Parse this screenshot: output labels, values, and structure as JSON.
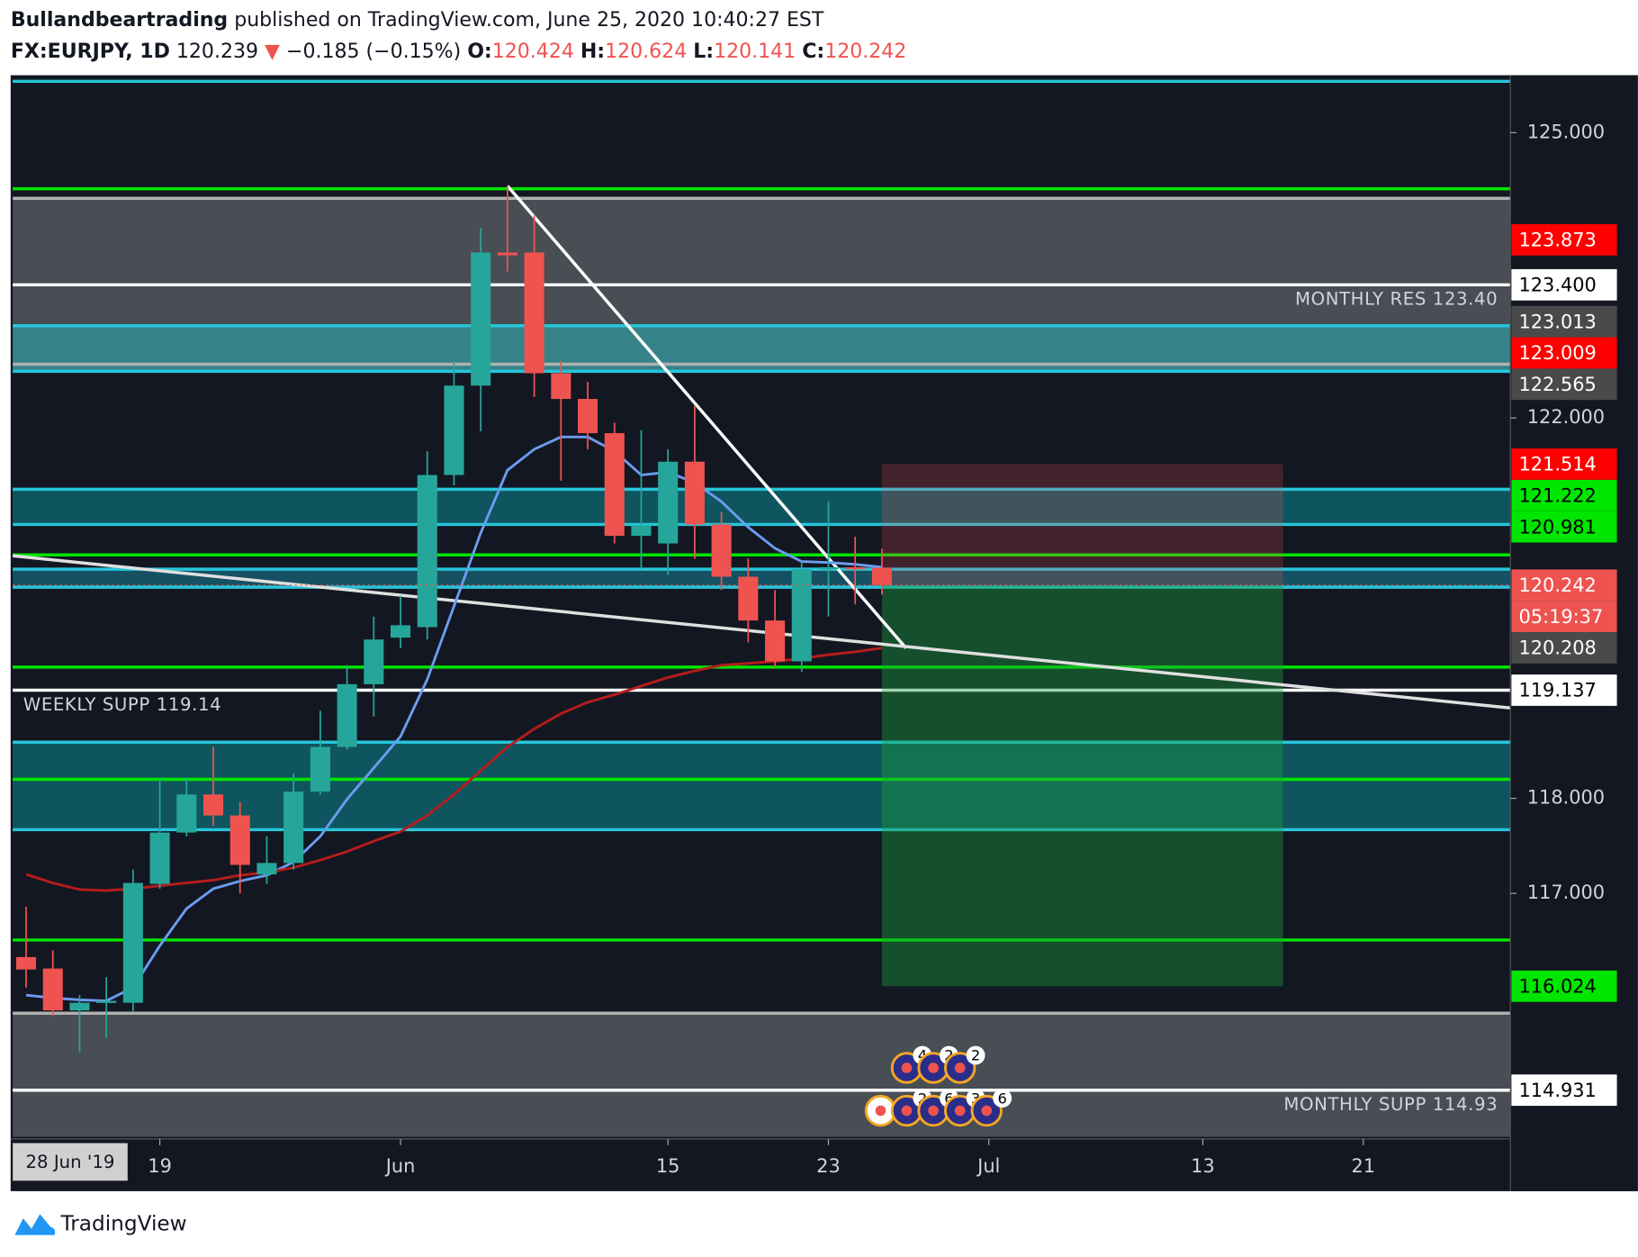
{
  "header": {
    "author": "Bullandbeartrading",
    "published": " published on TradingView.com, June 25, 2020 10:40:27 EST",
    "symbol": "FX:EURJPY, 1D",
    "last": 120.239,
    "arrow": "▼",
    "change": "−0.185 (−0.15%)",
    "o_label": "O:",
    "open": 120.424,
    "h_label": "H:",
    "high": 120.624,
    "l_label": "L:",
    "low": 120.141,
    "c_label": "C:",
    "close": 120.242
  },
  "chart_data": {
    "type": "candlestick",
    "up_color": "#26a69a",
    "down_color": "#ef5350",
    "xlim": [
      -0.5,
      55.5
    ],
    "ylim": [
      114.44,
      125.571
    ],
    "xticks": [
      {
        "value": 5,
        "label": "19"
      },
      {
        "value": 14,
        "label": "Jun"
      },
      {
        "value": 24,
        "label": "15"
      },
      {
        "value": 30,
        "label": "23"
      },
      {
        "value": 36,
        "label": "Jul"
      },
      {
        "value": 44,
        "label": "13"
      },
      {
        "value": 50,
        "label": "21"
      }
    ],
    "date_marker": "28 Jun '19",
    "yticks": [
      {
        "value": 125,
        "label": "125.000"
      },
      {
        "value": 122,
        "label": "122.000"
      },
      {
        "value": 118,
        "label": "118.000"
      },
      {
        "value": 117,
        "label": "117.000"
      }
    ],
    "candles": [
      {
        "open": 116.33,
        "high": 116.86,
        "low": 116.01,
        "close": 116.2
      },
      {
        "open": 116.21,
        "high": 116.4,
        "low": 115.71,
        "close": 115.77
      },
      {
        "open": 115.77,
        "high": 115.93,
        "low": 115.33,
        "close": 115.85
      },
      {
        "open": 115.85,
        "high": 116.12,
        "low": 115.48,
        "close": 115.87
      },
      {
        "open": 115.85,
        "high": 117.25,
        "low": 115.76,
        "close": 117.11
      },
      {
        "open": 117.1,
        "high": 118.21,
        "low": 117.05,
        "close": 117.64
      },
      {
        "open": 117.64,
        "high": 118.21,
        "low": 117.6,
        "close": 118.04
      },
      {
        "open": 118.04,
        "high": 118.54,
        "low": 117.71,
        "close": 117.82
      },
      {
        "open": 117.82,
        "high": 117.96,
        "low": 117.0,
        "close": 117.3
      },
      {
        "open": 117.2,
        "high": 117.6,
        "low": 117.1,
        "close": 117.32
      },
      {
        "open": 117.32,
        "high": 118.26,
        "low": 117.25,
        "close": 118.07
      },
      {
        "open": 118.07,
        "high": 118.92,
        "low": 118.04,
        "close": 118.54
      },
      {
        "open": 118.54,
        "high": 119.4,
        "low": 118.51,
        "close": 119.2
      },
      {
        "open": 119.2,
        "high": 119.91,
        "low": 118.86,
        "close": 119.67
      },
      {
        "open": 119.69,
        "high": 120.13,
        "low": 119.58,
        "close": 119.82
      },
      {
        "open": 119.8,
        "high": 121.65,
        "low": 119.67,
        "close": 121.4
      },
      {
        "open": 121.4,
        "high": 122.6,
        "low": 121.29,
        "close": 122.34
      },
      {
        "open": 122.34,
        "high": 124.0,
        "low": 121.86,
        "close": 123.74
      },
      {
        "open": 123.74,
        "high": 124.44,
        "low": 123.54,
        "close": 123.71
      },
      {
        "open": 123.74,
        "high": 124.13,
        "low": 122.22,
        "close": 122.47
      },
      {
        "open": 122.47,
        "high": 122.6,
        "low": 121.34,
        "close": 122.2
      },
      {
        "open": 122.2,
        "high": 122.38,
        "low": 121.67,
        "close": 121.84
      },
      {
        "open": 121.84,
        "high": 121.95,
        "low": 120.68,
        "close": 120.76
      },
      {
        "open": 120.76,
        "high": 121.87,
        "low": 120.41,
        "close": 120.87
      },
      {
        "open": 120.68,
        "high": 121.67,
        "low": 120.35,
        "close": 121.54
      },
      {
        "open": 121.54,
        "high": 122.13,
        "low": 120.52,
        "close": 120.88
      },
      {
        "open": 120.88,
        "high": 121.01,
        "low": 120.19,
        "close": 120.33
      },
      {
        "open": 120.33,
        "high": 120.52,
        "low": 119.64,
        "close": 119.87
      },
      {
        "open": 119.87,
        "high": 120.19,
        "low": 119.38,
        "close": 119.44
      },
      {
        "open": 119.44,
        "high": 120.49,
        "low": 119.33,
        "close": 120.41
      },
      {
        "open": 120.41,
        "high": 121.12,
        "low": 119.91,
        "close": 120.43
      },
      {
        "open": 120.43,
        "high": 120.75,
        "low": 120.04,
        "close": 120.41
      },
      {
        "open": 120.424,
        "high": 120.624,
        "low": 120.141,
        "close": 120.242
      }
    ],
    "series": [
      {
        "color": "#6c9cf0",
        "values": [
          115.93,
          115.9,
          115.88,
          115.87,
          116.01,
          116.45,
          116.84,
          117.05,
          117.13,
          117.19,
          117.33,
          117.6,
          117.99,
          118.32,
          118.65,
          119.25,
          120.02,
          120.79,
          121.45,
          121.67,
          121.8,
          121.8,
          121.65,
          121.4,
          121.43,
          121.32,
          121.12,
          120.85,
          120.63,
          120.49,
          120.48,
          120.46,
          120.43
        ]
      },
      {
        "color": "#b71c1c",
        "values": [
          117.2,
          117.11,
          117.04,
          117.03,
          117.05,
          117.08,
          117.11,
          117.14,
          117.19,
          117.22,
          117.27,
          117.35,
          117.44,
          117.55,
          117.65,
          117.82,
          118.04,
          118.29,
          118.54,
          118.73,
          118.89,
          119.01,
          119.09,
          119.18,
          119.27,
          119.34,
          119.4,
          119.42,
          119.44,
          119.47,
          119.51,
          119.54,
          119.58
        ]
      }
    ],
    "zones": [
      {
        "from": 124.31,
        "to": 122.97,
        "color": "#50535a"
      },
      {
        "from": 122.97,
        "to": 122.5,
        "color": "#3a8f94"
      },
      {
        "from": 121.25,
        "to": 120.88,
        "color": "#0f5c66"
      },
      {
        "from": 120.41,
        "to": 120.22,
        "color": "#16586a"
      },
      {
        "from": 118.59,
        "to": 117.67,
        "color": "#0f5c66"
      },
      {
        "from": 115.74,
        "to": 114.44,
        "color": "#50535a"
      }
    ],
    "levels": [
      {
        "value": 125.54,
        "color": "#26c6da"
      },
      {
        "value": 124.41,
        "color": "#00e600"
      },
      {
        "value": 124.31,
        "color": "#b0b0b0"
      },
      {
        "value": 123.4,
        "color": "#ffffff"
      },
      {
        "value": 122.97,
        "color": "#26c6da"
      },
      {
        "value": 122.565,
        "color": "#b0b0b0"
      },
      {
        "value": 122.49,
        "color": "#26c6da"
      },
      {
        "value": 121.25,
        "color": "#26c6da"
      },
      {
        "value": 120.88,
        "color": "#26c6da"
      },
      {
        "value": 120.56,
        "color": "#00e600"
      },
      {
        "value": 120.41,
        "color": "#26c6da"
      },
      {
        "value": 120.22,
        "color": "#26c6da"
      },
      {
        "value": 119.38,
        "color": "#00e600"
      },
      {
        "value": 119.137,
        "color": "#ffffff"
      },
      {
        "value": 118.59,
        "color": "#26c6da"
      },
      {
        "value": 118.2,
        "color": "#00e600"
      },
      {
        "value": 117.67,
        "color": "#26c6da"
      },
      {
        "value": 116.51,
        "color": "#00e600"
      },
      {
        "value": 115.74,
        "color": "#b0b0b0"
      },
      {
        "value": 114.931,
        "color": "#ffffff"
      }
    ],
    "trendlines": [
      {
        "x": [
          18,
          32.9
        ],
        "y": [
          124.44,
          119.58
        ],
        "color": "#ffffff"
      },
      {
        "x": [
          -0.5,
          55.5
        ],
        "y": [
          120.55,
          118.95
        ],
        "color": "#e0e0e0"
      }
    ],
    "position": {
      "x": [
        32,
        47
      ],
      "entry": 120.242,
      "stop": 121.514,
      "target": 116.024
    },
    "price_labels": [
      {
        "value": 123.873,
        "bg": "#ff0000",
        "fg": "#ffffff"
      },
      {
        "value": 123.4,
        "label": "123.400",
        "bg": "#ffffff",
        "fg": "#000000"
      },
      {
        "value": 123.013,
        "bg": "#4a4a4a",
        "fg": "#ffffff"
      },
      {
        "value": 123.009,
        "bg": "#ff0000",
        "fg": "#ffffff"
      },
      {
        "value": 122.565,
        "bg": "#4a4a4a",
        "fg": "#ffffff"
      },
      {
        "value": 121.514,
        "bg": "#ff0000",
        "fg": "#ffffff"
      },
      {
        "value": 121.222,
        "bg": "#00e600",
        "fg": "#000000"
      },
      {
        "value": 120.981,
        "bg": "#00e600",
        "fg": "#000000"
      },
      {
        "value": 120.242,
        "bg": "#ef5350",
        "fg": "#ffffff",
        "countdown": "05:19:37"
      },
      {
        "value": 120.208,
        "bg": "#4a4a4a",
        "fg": "#ffffff"
      },
      {
        "value": 119.137,
        "bg": "#ffffff",
        "fg": "#000000"
      },
      {
        "value": 116.024,
        "bg": "#00e600",
        "fg": "#000000"
      },
      {
        "value": 114.931,
        "bg": "#ffffff",
        "fg": "#000000"
      }
    ],
    "annotations": [
      "MONTHLY RES 123.40",
      "WEEKLY SUPP 119.14",
      "MONTHLY SUPP 114.93"
    ],
    "events": {
      "row1": [
        4,
        2,
        2
      ],
      "row2": [
        2,
        6,
        3,
        6
      ]
    }
  },
  "footer": {
    "brand": "TradingView"
  }
}
